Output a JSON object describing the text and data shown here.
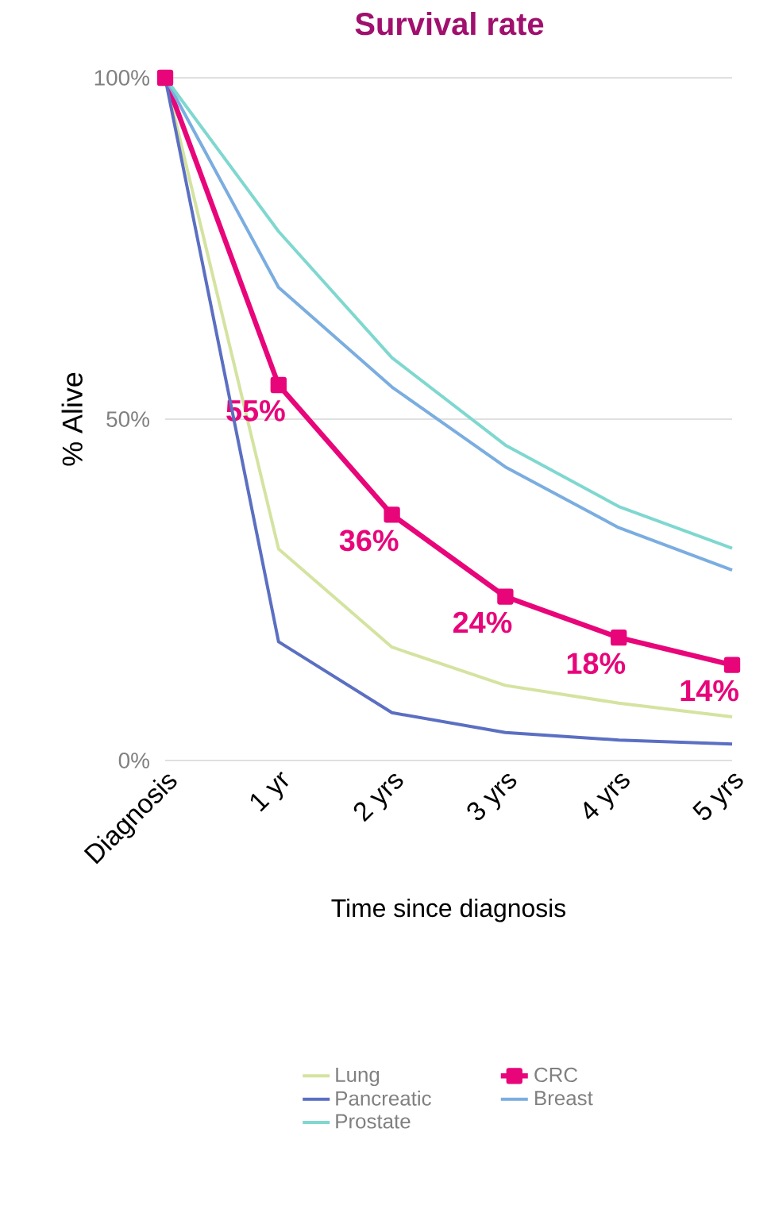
{
  "chart_data": {
    "type": "line",
    "title": "Survival rate",
    "xlabel": "Time since diagnosis",
    "ylabel": "% Alive",
    "categories": [
      "Diagnosis",
      "1 yr",
      "2 yrs",
      "3 yrs",
      "4 yrs",
      "5 yrs"
    ],
    "series": [
      {
        "name": "Lung",
        "color": "#d4e3a0",
        "values": [
          100,
          31,
          16.6,
          11,
          8.4,
          6.4
        ]
      },
      {
        "name": "CRC",
        "color": "#e8057a",
        "marker": "square",
        "values": [
          100,
          55,
          36,
          24,
          18,
          14
        ],
        "value_labels": [
          null,
          "55%",
          "36%",
          "24%",
          "18%",
          "14%"
        ]
      },
      {
        "name": "Pancreatic",
        "color": "#5b6fc2",
        "values": [
          100,
          17.4,
          7,
          4.1,
          3,
          2.4
        ]
      },
      {
        "name": "Breast",
        "color": "#7aade0",
        "values": [
          100,
          69.3,
          54.7,
          43,
          34.1,
          27.9
        ]
      },
      {
        "name": "Prostate",
        "color": "#7fd8cf",
        "values": [
          100,
          77.5,
          59,
          46.2,
          37.2,
          31.1
        ]
      }
    ],
    "ylim": [
      0,
      100
    ],
    "yticks": [
      {
        "value": 0,
        "label": "0%"
      },
      {
        "value": 50,
        "label": "50%"
      },
      {
        "value": 100,
        "label": "100%"
      }
    ],
    "grid": "y",
    "legend": "bottom"
  }
}
